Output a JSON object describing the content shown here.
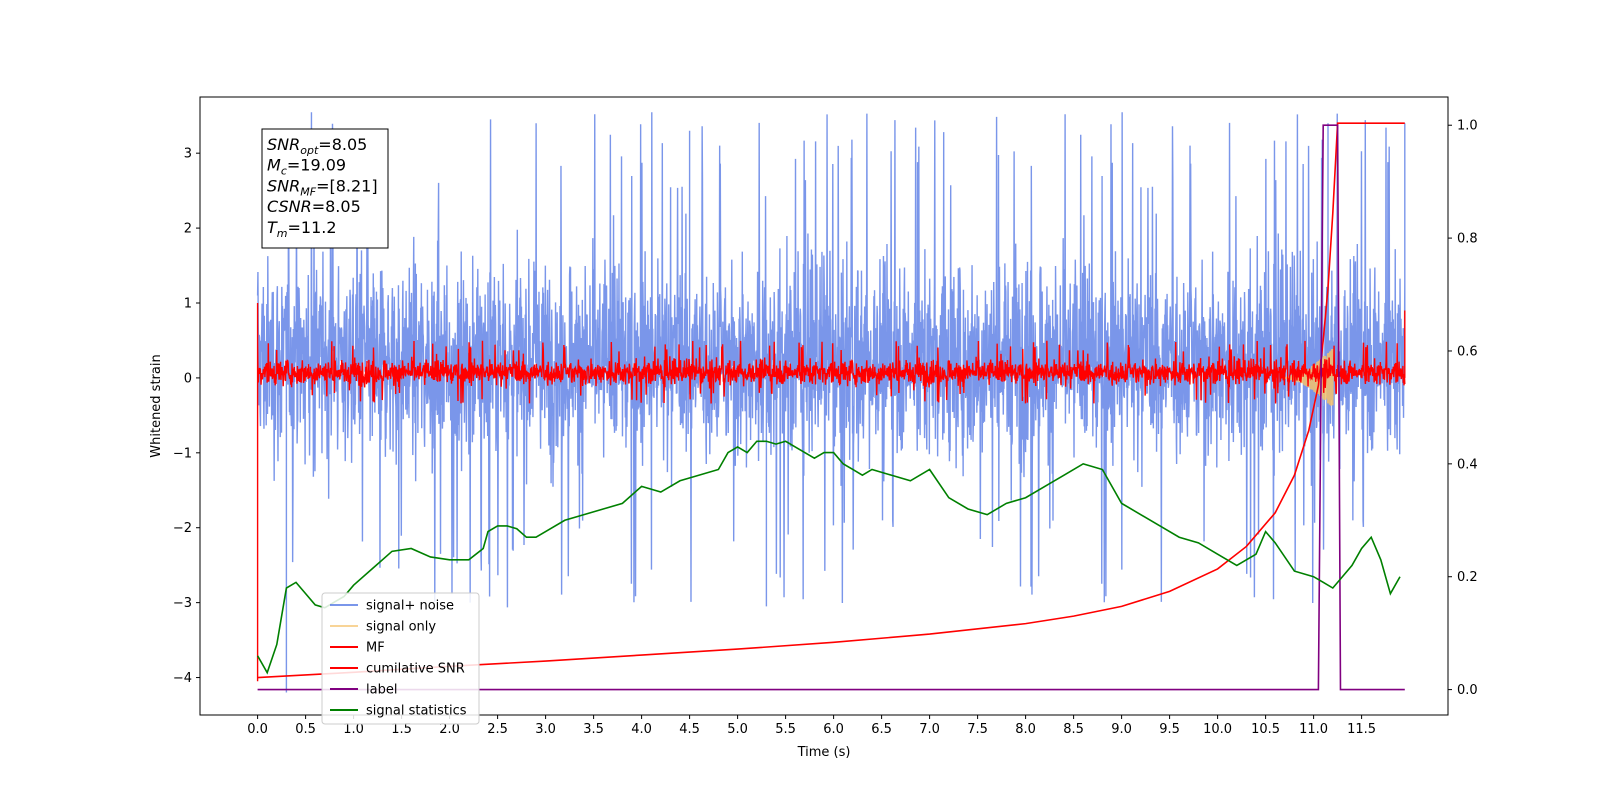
{
  "chart_data": {
    "type": "line",
    "xlabel": "Time (s)",
    "ylabel": "Whitened strain",
    "xlim": [
      -0.6,
      12.4
    ],
    "ylim": [
      -4.5,
      3.75
    ],
    "y2lim": [
      -0.045,
      1.05
    ],
    "x_ticks": [
      "0.0",
      "0.5",
      "1.0",
      "1.5",
      "2.0",
      "2.5",
      "3.0",
      "3.5",
      "4.0",
      "4.5",
      "5.0",
      "5.5",
      "6.0",
      "6.5",
      "7.0",
      "7.5",
      "8.0",
      "8.5",
      "9.0",
      "9.5",
      "10.0",
      "10.5",
      "11.0",
      "11.5"
    ],
    "y_ticks": [
      "−4",
      "−3",
      "−2",
      "−1",
      "0",
      "1",
      "2",
      "3"
    ],
    "y2_ticks": [
      "0.0",
      "0.2",
      "0.4",
      "0.6",
      "0.8",
      "1.0"
    ],
    "annotation": [
      {
        "base": "SNR",
        "sub": "opt",
        "value": "=8.05"
      },
      {
        "base": "M",
        "sub": "c",
        "value": "=19.09"
      },
      {
        "base": "SNR",
        "sub": "MF",
        "value": "=[8.21]"
      },
      {
        "base": "CSNR",
        "sub": "",
        "value": "=8.05"
      },
      {
        "base": "T",
        "sub": "m",
        "value": "=11.2"
      }
    ],
    "legend_position": "lower-left",
    "series": [
      {
        "name": "signal+ noise",
        "color": "#4169e1",
        "opacity": 0.7,
        "axis": "left",
        "kind": "noise",
        "x_range": [
          0.0,
          11.95
        ],
        "envelope": [
          -1.9,
          2.4
        ],
        "extremes": [
          [
            0.3,
            -4.2
          ],
          [
            4.5,
            3.3
          ],
          [
            11.15,
            3.4
          ],
          [
            11.95,
            3.4
          ],
          [
            5.3,
            -3.05
          ]
        ]
      },
      {
        "name": "signal only",
        "color": "#f5c26b",
        "axis": "left",
        "kind": "chirp",
        "x_range": [
          10.7,
          11.2
        ],
        "peak": 0.4
      },
      {
        "name": "MF",
        "color": "#ff0000",
        "axis": "left",
        "kind": "noise",
        "x_range": [
          0.0,
          11.95
        ],
        "envelope": [
          -0.2,
          0.35
        ],
        "extremes": [
          [
            0.0,
            1.0
          ],
          [
            0.0,
            -4.05
          ],
          [
            11.95,
            0.9
          ]
        ]
      },
      {
        "name": "cumilative SNR",
        "color": "#ff0000",
        "axis": "left",
        "kind": "line",
        "x": [
          0.0,
          1.0,
          2.0,
          3.0,
          4.0,
          5.0,
          6.0,
          7.0,
          8.0,
          8.5,
          9.0,
          9.5,
          10.0,
          10.3,
          10.6,
          10.8,
          10.95,
          11.05,
          11.1,
          11.15,
          11.2,
          11.25,
          11.3,
          11.95
        ],
        "y": [
          -4.0,
          -3.93,
          -3.85,
          -3.78,
          -3.7,
          -3.62,
          -3.53,
          -3.42,
          -3.28,
          -3.18,
          -3.05,
          -2.85,
          -2.55,
          -2.25,
          -1.8,
          -1.3,
          -0.7,
          -0.1,
          0.5,
          1.2,
          2.2,
          3.4,
          3.4,
          3.4
        ]
      },
      {
        "name": "label",
        "color": "#800080",
        "axis": "right",
        "kind": "line",
        "x": [
          0.0,
          11.05,
          11.1,
          11.25,
          11.28,
          11.95
        ],
        "y": [
          0.0,
          0.0,
          1.0,
          1.0,
          0.0,
          0.0
        ]
      },
      {
        "name": "signal statistics",
        "color": "#008000",
        "axis": "right",
        "kind": "line",
        "x": [
          0.0,
          0.1,
          0.2,
          0.3,
          0.4,
          0.5,
          0.6,
          0.7,
          0.8,
          0.9,
          1.0,
          1.2,
          1.4,
          1.6,
          1.8,
          2.0,
          2.2,
          2.35,
          2.4,
          2.5,
          2.6,
          2.7,
          2.8,
          2.9,
          3.0,
          3.2,
          3.4,
          3.6,
          3.8,
          4.0,
          4.2,
          4.4,
          4.6,
          4.8,
          4.9,
          5.0,
          5.1,
          5.2,
          5.3,
          5.4,
          5.5,
          5.6,
          5.7,
          5.8,
          5.9,
          6.0,
          6.1,
          6.2,
          6.3,
          6.4,
          6.6,
          6.8,
          7.0,
          7.2,
          7.4,
          7.6,
          7.8,
          8.0,
          8.2,
          8.4,
          8.6,
          8.8,
          9.0,
          9.2,
          9.4,
          9.6,
          9.8,
          10.0,
          10.2,
          10.4,
          10.5,
          10.6,
          10.8,
          11.0,
          11.1,
          11.2,
          11.3,
          11.4,
          11.5,
          11.6,
          11.7,
          11.8,
          11.9
        ],
        "y": [
          0.06,
          0.03,
          0.08,
          0.18,
          0.19,
          0.17,
          0.15,
          0.145,
          0.155,
          0.165,
          0.185,
          0.215,
          0.245,
          0.25,
          0.235,
          0.23,
          0.23,
          0.25,
          0.28,
          0.29,
          0.29,
          0.285,
          0.27,
          0.27,
          0.28,
          0.3,
          0.31,
          0.32,
          0.33,
          0.36,
          0.35,
          0.37,
          0.38,
          0.39,
          0.42,
          0.43,
          0.42,
          0.44,
          0.44,
          0.435,
          0.44,
          0.43,
          0.42,
          0.41,
          0.42,
          0.42,
          0.4,
          0.39,
          0.38,
          0.39,
          0.38,
          0.37,
          0.39,
          0.34,
          0.32,
          0.31,
          0.33,
          0.34,
          0.36,
          0.38,
          0.4,
          0.39,
          0.33,
          0.31,
          0.29,
          0.27,
          0.26,
          0.24,
          0.22,
          0.24,
          0.28,
          0.26,
          0.21,
          0.2,
          0.19,
          0.18,
          0.2,
          0.22,
          0.25,
          0.27,
          0.23,
          0.17,
          0.2
        ]
      }
    ]
  }
}
